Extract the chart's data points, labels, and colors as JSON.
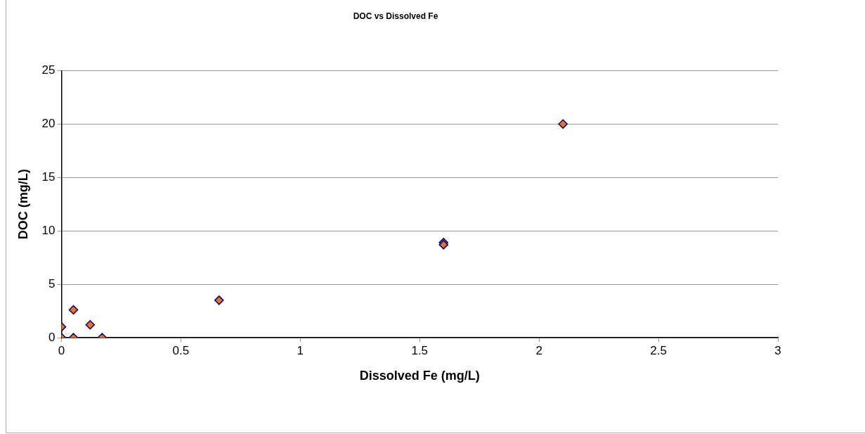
{
  "chart_data": {
    "type": "scatter",
    "title": "DOC vs Dissolved Fe",
    "xlabel": "Dissolved Fe (mg/L)",
    "ylabel": "DOC (mg/L)",
    "x": [
      0,
      0,
      0.05,
      0.05,
      0.12,
      0.17,
      0.66,
      1.6,
      1.6,
      2.1
    ],
    "values": [
      0,
      1,
      0,
      2.6,
      1.2,
      0,
      3.5,
      8.9,
      8.7,
      20
    ],
    "color": "#e8731a",
    "marker": "diamond",
    "grid": "y",
    "legend": false,
    "xlim": [
      0,
      3
    ],
    "xticks": [
      0,
      0.5,
      1,
      1.5,
      2,
      2.5,
      3
    ],
    "ylim": [
      0,
      25
    ],
    "yticks": [
      0,
      5,
      10,
      15,
      20,
      25
    ]
  }
}
